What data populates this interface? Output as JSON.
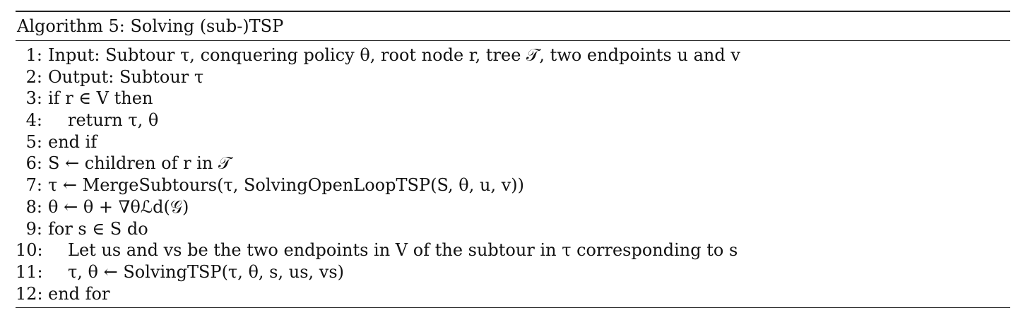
{
  "algorithm": {
    "caption": "Algorithm 5: Solving (sub-)TSP",
    "lines": [
      {
        "num": "1:",
        "text": "Input: Subtour τ, conquering policy θ, root node r, tree 𝒯, two endpoints u and v",
        "indent": 0
      },
      {
        "num": "2:",
        "text": "Output: Subtour τ",
        "indent": 0
      },
      {
        "num": "3:",
        "text": "if r ∈ V then",
        "indent": 0
      },
      {
        "num": "4:",
        "text": "return  τ, θ",
        "indent": 1
      },
      {
        "num": "5:",
        "text": "end if",
        "indent": 0
      },
      {
        "num": "6:",
        "text": "S ← children of r in 𝒯",
        "indent": 0
      },
      {
        "num": "7:",
        "text": "τ ← MergeSubtours(τ, SolvingOpenLoopTSP(S, θ, u, v))",
        "indent": 0
      },
      {
        "num": "8:",
        "text": "θ ← θ + ∇θℒd(𝒢)",
        "indent": 0
      },
      {
        "num": "9:",
        "text": "for s ∈ S do",
        "indent": 0
      },
      {
        "num": "10:",
        "text": "Let us and vs be the two endpoints in V of the subtour in τ corresponding to s",
        "indent": 1
      },
      {
        "num": "11:",
        "text": "τ, θ ← SolvingTSP(τ, θ, s, us, vs)",
        "indent": 1
      },
      {
        "num": "12:",
        "text": "end for",
        "indent": 0
      }
    ]
  }
}
